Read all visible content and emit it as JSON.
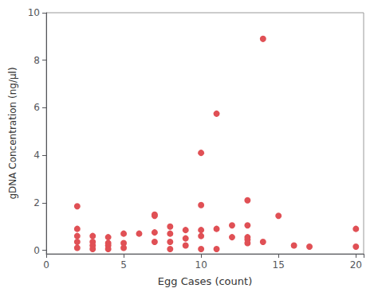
{
  "chart_data": {
    "type": "scatter",
    "xlabel": "Egg Cases (count)",
    "ylabel": "gDNA Concentration (ng/µl)",
    "x": [
      2,
      2,
      2,
      2,
      2,
      3,
      3,
      3,
      3,
      4,
      4,
      4,
      4,
      5,
      5,
      5,
      6,
      7,
      7,
      7,
      7,
      8,
      8,
      8,
      8,
      9,
      9,
      9,
      10,
      10,
      10,
      10,
      10,
      11,
      11,
      11,
      12,
      12,
      13,
      13,
      13,
      13,
      13,
      14,
      14,
      15,
      16,
      17,
      20,
      20
    ],
    "values": [
      1.85,
      0.9,
      0.6,
      0.35,
      0.1,
      0.6,
      0.35,
      0.2,
      0.05,
      0.55,
      0.3,
      0.2,
      0.05,
      0.7,
      0.3,
      0.1,
      0.7,
      1.5,
      1.45,
      0.75,
      0.35,
      1.0,
      0.7,
      0.35,
      0.05,
      0.85,
      0.5,
      0.2,
      4.1,
      1.9,
      0.85,
      0.6,
      0.05,
      5.75,
      0.9,
      0.05,
      1.05,
      0.55,
      2.1,
      1.05,
      0.55,
      0.45,
      0.3,
      8.9,
      0.35,
      1.45,
      0.2,
      0.15,
      0.9,
      0.15
    ],
    "color": "#e05055",
    "xlim": [
      0,
      20.5
    ],
    "ylim": [
      -0.15,
      10
    ],
    "xticks": [
      0,
      5,
      10,
      15,
      20
    ],
    "yticks": [
      0,
      2,
      4,
      6,
      8,
      10
    ],
    "grid": false
  }
}
